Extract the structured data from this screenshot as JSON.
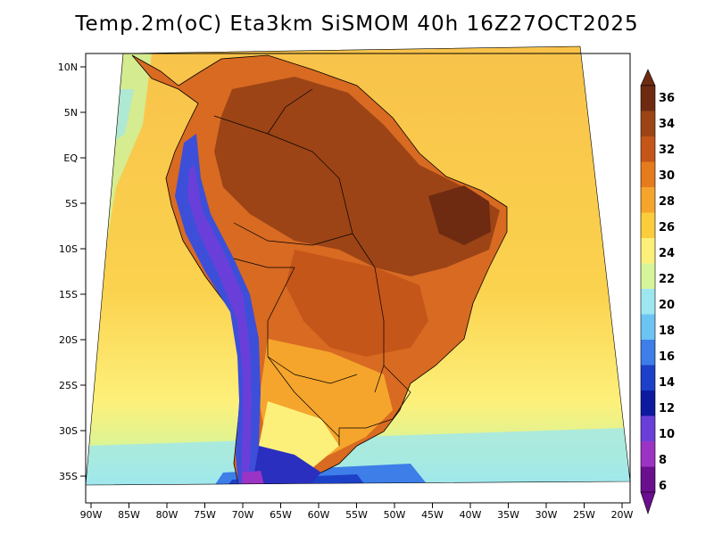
{
  "title": "Temp.2m(oC) Eta3km SiSMOM 40h 16Z27OCT2025",
  "lat_labels": [
    "10N",
    "5N",
    "EQ",
    "5S",
    "10S",
    "15S",
    "20S",
    "25S",
    "30S",
    "35S"
  ],
  "lon_labels": [
    "90W",
    "85W",
    "80W",
    "75W",
    "70W",
    "65W",
    "60W",
    "55W",
    "50W",
    "45W",
    "40W",
    "35W",
    "30W",
    "25W",
    "20W"
  ],
  "colorbar": {
    "labels": [
      "36",
      "34",
      "32",
      "30",
      "28",
      "26",
      "24",
      "22",
      "20",
      "18",
      "16",
      "14",
      "12",
      "10",
      "8",
      "6"
    ],
    "colors": [
      "#6e2b12",
      "#9c4416",
      "#c4561a",
      "#e67b1e",
      "#f5a52c",
      "#fbcd3c",
      "#fdf07a",
      "#d6f59a",
      "#9ee7f0",
      "#6cc4f3",
      "#3d7ee8",
      "#1d40c8",
      "#0d1aa0",
      "#6a3fd9",
      "#9b34c4",
      "#6a0f8e"
    ]
  },
  "legend_colors": {
    "ocean_warm": "#f8c24a",
    "ocean_mild": "#fde56e",
    "ocean_cool": "#cff29c",
    "land_hot": "#9c4416",
    "land_warm": "#d0621f",
    "andes_cold": "#3d4fd8",
    "patagonia_cold": "#2a2fc0",
    "outline": "#000000"
  }
}
